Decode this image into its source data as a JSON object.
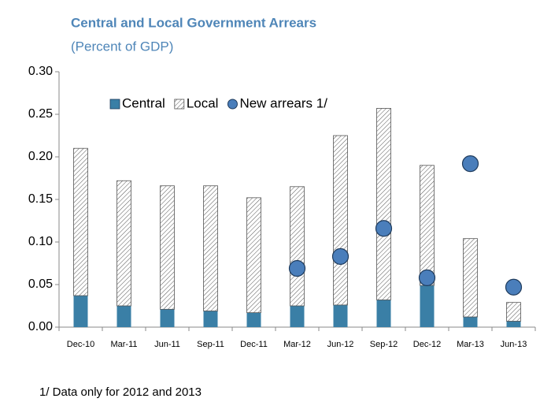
{
  "chart_data": {
    "type": "bar",
    "stacked": true,
    "title": "Central and Local Government  Arrears",
    "subtitle": "(Percent of GDP)",
    "footnote": "1/ Data only for 2012 and 2013",
    "categories": [
      "Dec-10",
      "Mar-11",
      "Jun-11",
      "Sep-11",
      "Dec-11",
      "Mar-12",
      "Jun-12",
      "Sep-12",
      "Dec-12",
      "Mar-13",
      "Jun-13"
    ],
    "series": [
      {
        "name": "Central",
        "type": "bar",
        "color": "#3a7fa6",
        "values": [
          0.037,
          0.025,
          0.021,
          0.019,
          0.017,
          0.025,
          0.026,
          0.032,
          0.049,
          0.012,
          0.007
        ]
      },
      {
        "name": "Local",
        "type": "bar",
        "hatch": true,
        "color": "#555555",
        "values": [
          0.173,
          0.147,
          0.145,
          0.147,
          0.135,
          0.14,
          0.199,
          0.225,
          0.141,
          0.092,
          0.022
        ]
      },
      {
        "name": "New arrears 1/",
        "type": "scatter",
        "color": "#4a7ebb",
        "values": [
          null,
          null,
          null,
          null,
          null,
          0.069,
          0.083,
          0.116,
          0.058,
          0.192,
          0.047
        ]
      }
    ],
    "ylim": [
      0,
      0.3
    ],
    "yticks": [
      {
        "value": 0,
        "label": "0.00"
      },
      {
        "value": 0.05,
        "label": "0.05"
      },
      {
        "value": 0.1,
        "label": "0.10"
      },
      {
        "value": 0.15,
        "label": "0.15"
      },
      {
        "value": 0.2,
        "label": "0.20"
      },
      {
        "value": 0.25,
        "label": "0.25"
      },
      {
        "value": 0.3,
        "label": "0.30"
      }
    ],
    "legend": "upper-left",
    "grid": false
  }
}
